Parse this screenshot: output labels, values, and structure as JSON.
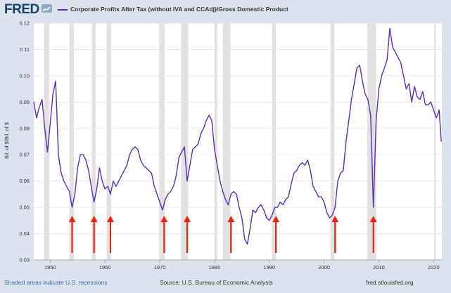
{
  "header": {
    "logo": "FRED",
    "logo_icon": "chart-trend-icon",
    "series_title": "Corporate Profits After Tax (without IVA and CCAdj)/Gross Domestic Product"
  },
  "footer": {
    "recession_note": "Shaded areas indicate U.S. recessions",
    "source": "Source: U.S. Bureau of Economic Analysis",
    "site": "fred.stlouisfed.org"
  },
  "colors": {
    "line": "#5a2eb8",
    "recession": "#e1e1e1",
    "arrow": "#ee2211",
    "frame": "#dbe4ee",
    "plot_bg": "#ffffff"
  },
  "chart_data": {
    "type": "line",
    "title": "Corporate Profits After Tax (without IVA and CCAdj)/Gross Domestic Product",
    "ylabel": "Bil. of $/Bil. of $",
    "xlabel": "",
    "xlim": [
      1947,
      2021.5
    ],
    "ylim": [
      0.03,
      0.12
    ],
    "x_ticks": [
      1950,
      1960,
      1970,
      1980,
      1990,
      2000,
      2010,
      2020
    ],
    "y_ticks": [
      0.03,
      0.04,
      0.05,
      0.06,
      0.07,
      0.08,
      0.09,
      0.1,
      0.11,
      0.12
    ],
    "y_tick_labels": [
      "0.03",
      "0.04",
      "0.05",
      "0.06",
      "0.07",
      "0.08",
      "0.09",
      "0.10",
      "0.11",
      "0.12"
    ],
    "grid": true,
    "recessions": [
      [
        1948.9,
        1949.8
      ],
      [
        1953.5,
        1954.3
      ],
      [
        1957.6,
        1958.3
      ],
      [
        1960.3,
        1961.1
      ],
      [
        1969.9,
        1970.9
      ],
      [
        1973.9,
        1975.2
      ],
      [
        1980.0,
        1980.5
      ],
      [
        1981.5,
        1982.9
      ],
      [
        1990.5,
        1991.2
      ],
      [
        2001.2,
        2001.9
      ],
      [
        2007.9,
        2009.5
      ],
      [
        2020.1,
        2020.4
      ]
    ],
    "annotations": {
      "type": "arrow",
      "color": "#ee2211",
      "x": [
        1954.0,
        1958.0,
        1961.0,
        1970.8,
        1975.0,
        1983.0,
        1991.2,
        2002.0,
        2009.0
      ]
    },
    "series": [
      {
        "x": [
          1947.0,
          1947.5,
          1948.0,
          1948.5,
          1949.0,
          1949.5,
          1950.0,
          1950.5,
          1951.0,
          1951.5,
          1952.0,
          1952.5,
          1953.0,
          1953.5,
          1954.0,
          1954.5,
          1955.0,
          1955.5,
          1956.0,
          1956.5,
          1957.0,
          1957.5,
          1958.0,
          1958.5,
          1959.0,
          1959.5,
          1960.0,
          1960.5,
          1961.0,
          1961.5,
          1962.0,
          1962.5,
          1963.0,
          1963.5,
          1964.0,
          1964.5,
          1965.0,
          1965.5,
          1966.0,
          1966.5,
          1967.0,
          1967.5,
          1968.0,
          1968.5,
          1969.0,
          1969.5,
          1970.0,
          1970.5,
          1971.0,
          1971.5,
          1972.0,
          1972.5,
          1973.0,
          1973.5,
          1974.0,
          1974.5,
          1975.0,
          1975.5,
          1976.0,
          1976.5,
          1977.0,
          1977.5,
          1978.0,
          1978.5,
          1979.0,
          1979.5,
          1980.0,
          1980.5,
          1981.0,
          1981.5,
          1982.0,
          1982.5,
          1983.0,
          1983.5,
          1984.0,
          1984.5,
          1985.0,
          1985.5,
          1986.0,
          1986.5,
          1987.0,
          1987.5,
          1988.0,
          1988.5,
          1989.0,
          1989.5,
          1990.0,
          1990.5,
          1991.0,
          1991.5,
          1992.0,
          1992.5,
          1993.0,
          1993.5,
          1994.0,
          1994.5,
          1995.0,
          1995.5,
          1996.0,
          1996.5,
          1997.0,
          1997.5,
          1998.0,
          1998.5,
          1999.0,
          1999.5,
          2000.0,
          2000.5,
          2001.0,
          2001.5,
          2002.0,
          2002.5,
          2003.0,
          2003.5,
          2004.0,
          2004.5,
          2005.0,
          2005.5,
          2006.0,
          2006.5,
          2007.0,
          2007.5,
          2008.0,
          2008.5,
          2009.0,
          2009.5,
          2010.0,
          2010.5,
          2011.0,
          2011.5,
          2012.0,
          2012.5,
          2013.0,
          2013.5,
          2014.0,
          2014.5,
          2015.0,
          2015.5,
          2016.0,
          2016.5,
          2017.0,
          2017.5,
          2018.0,
          2018.5,
          2019.0,
          2019.5,
          2020.0,
          2020.5,
          2021.0,
          2021.4
        ],
        "y": [
          0.09,
          0.084,
          0.088,
          0.091,
          0.08,
          0.071,
          0.082,
          0.093,
          0.098,
          0.07,
          0.063,
          0.06,
          0.058,
          0.056,
          0.05,
          0.055,
          0.065,
          0.07,
          0.07,
          0.068,
          0.064,
          0.058,
          0.052,
          0.057,
          0.065,
          0.06,
          0.057,
          0.058,
          0.055,
          0.06,
          0.058,
          0.06,
          0.062,
          0.064,
          0.066,
          0.07,
          0.072,
          0.073,
          0.072,
          0.068,
          0.066,
          0.065,
          0.064,
          0.063,
          0.058,
          0.055,
          0.052,
          0.049,
          0.053,
          0.055,
          0.056,
          0.058,
          0.062,
          0.069,
          0.071,
          0.073,
          0.06,
          0.066,
          0.072,
          0.073,
          0.074,
          0.078,
          0.08,
          0.083,
          0.085,
          0.083,
          0.072,
          0.066,
          0.06,
          0.056,
          0.053,
          0.051,
          0.055,
          0.056,
          0.055,
          0.05,
          0.046,
          0.038,
          0.036,
          0.042,
          0.049,
          0.048,
          0.05,
          0.051,
          0.049,
          0.046,
          0.045,
          0.047,
          0.05,
          0.05,
          0.052,
          0.051,
          0.053,
          0.054,
          0.059,
          0.063,
          0.064,
          0.066,
          0.067,
          0.066,
          0.068,
          0.064,
          0.058,
          0.056,
          0.054,
          0.054,
          0.052,
          0.048,
          0.046,
          0.047,
          0.05,
          0.06,
          0.063,
          0.064,
          0.075,
          0.083,
          0.091,
          0.097,
          0.103,
          0.104,
          0.098,
          0.093,
          0.091,
          0.085,
          0.05,
          0.083,
          0.095,
          0.1,
          0.103,
          0.106,
          0.118,
          0.111,
          0.109,
          0.107,
          0.105,
          0.1,
          0.095,
          0.097,
          0.09,
          0.096,
          0.092,
          0.091,
          0.094,
          0.089,
          0.089,
          0.09,
          0.087,
          0.084,
          0.087,
          0.075
        ]
      }
    ]
  }
}
